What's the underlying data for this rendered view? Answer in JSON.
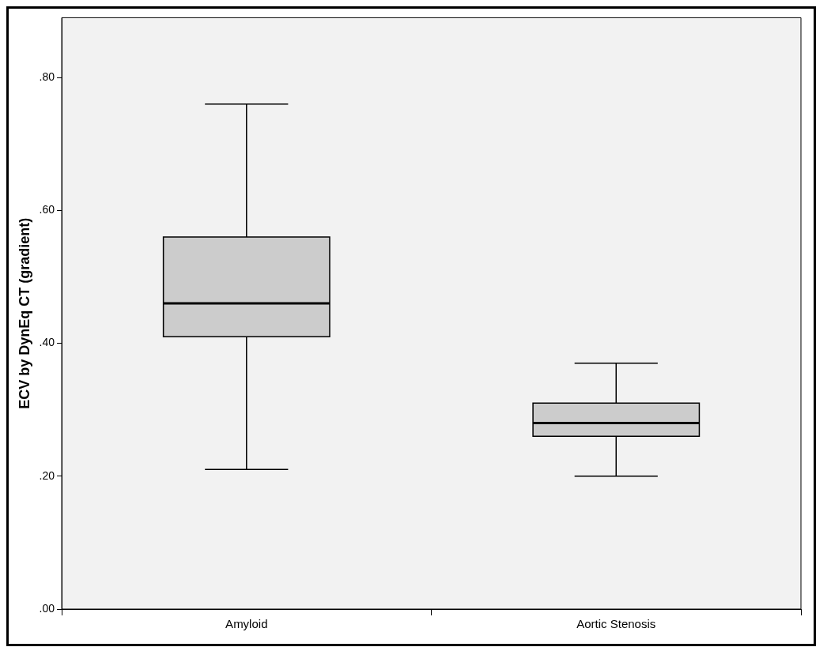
{
  "chart_data": {
    "type": "box",
    "ylabel": "ECV by DynEq CT (gradient)",
    "categories": [
      "Amyloid",
      "Aortic Stenosis"
    ],
    "boxes": [
      {
        "low": 0.21,
        "q1": 0.41,
        "median": 0.46,
        "q3": 0.56,
        "high": 0.76
      },
      {
        "low": 0.2,
        "q1": 0.26,
        "median": 0.28,
        "q3": 0.31,
        "high": 0.37
      }
    ],
    "color": "#cccccc",
    "ylim": [
      0,
      0.89
    ],
    "yticks": [
      {
        "value": 0,
        "label": ".00"
      },
      {
        "value": 0.2,
        "label": ".20"
      },
      {
        "value": 0.4,
        "label": ".40"
      },
      {
        "value": 0.6,
        "label": ".60"
      },
      {
        "value": 0.8,
        "label": ".80"
      }
    ],
    "grid": false,
    "legend": false
  }
}
